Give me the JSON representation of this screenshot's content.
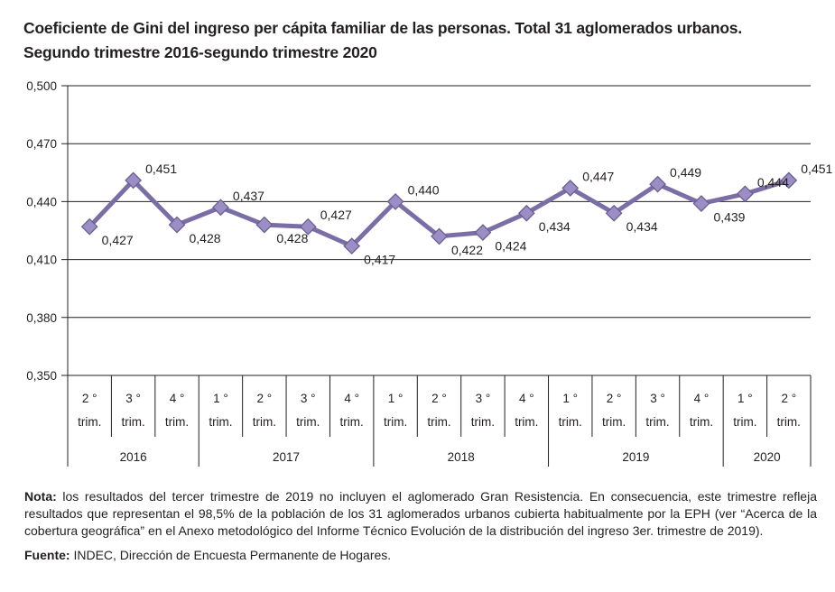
{
  "chart_data": {
    "type": "line",
    "title_line1": "Coeficiente de Gini del ingreso per cápita familiar de las personas. Total 31 aglomerados urbanos.",
    "title_line2": "Segundo trimestre 2016-segundo trimestre 2020",
    "ylim": [
      0.35,
      0.5
    ],
    "yticks": [
      "0,500",
      "0,470",
      "0,440",
      "0,410",
      "0,380",
      "0,350"
    ],
    "ytick_values": [
      0.5,
      0.47,
      0.44,
      0.41,
      0.38,
      0.35
    ],
    "grid": true,
    "series_color": "#7b6ea6",
    "marker_color": "#9a8ec4",
    "points": [
      {
        "q": "2 °",
        "t": "trim.",
        "year": "2016",
        "value": 0.427,
        "label": "0,427",
        "pos": "below"
      },
      {
        "q": "3 °",
        "t": "trim.",
        "year": "2016",
        "value": 0.451,
        "label": "0,451",
        "pos": "above"
      },
      {
        "q": "4 °",
        "t": "trim.",
        "year": "2016",
        "value": 0.428,
        "label": "0,428",
        "pos": "below"
      },
      {
        "q": "1 °",
        "t": "trim.",
        "year": "2017",
        "value": 0.437,
        "label": "0,437",
        "pos": "above"
      },
      {
        "q": "2 °",
        "t": "trim.",
        "year": "2017",
        "value": 0.428,
        "label": "0,428",
        "pos": "below"
      },
      {
        "q": "3 °",
        "t": "trim.",
        "year": "2017",
        "value": 0.427,
        "label": "0,427",
        "pos": "above"
      },
      {
        "q": "4 °",
        "t": "trim.",
        "year": "2017",
        "value": 0.417,
        "label": "0,417",
        "pos": "below"
      },
      {
        "q": "1 °",
        "t": "trim.",
        "year": "2018",
        "value": 0.44,
        "label": "0,440",
        "pos": "above"
      },
      {
        "q": "2 °",
        "t": "trim.",
        "year": "2018",
        "value": 0.422,
        "label": "0,422",
        "pos": "below"
      },
      {
        "q": "3 °",
        "t": "trim.",
        "year": "2018",
        "value": 0.424,
        "label": "0,424",
        "pos": "below"
      },
      {
        "q": "4 °",
        "t": "trim.",
        "year": "2018",
        "value": 0.434,
        "label": "0,434",
        "pos": "below"
      },
      {
        "q": "1 °",
        "t": "trim.",
        "year": "2019",
        "value": 0.447,
        "label": "0,447",
        "pos": "above"
      },
      {
        "q": "2 °",
        "t": "trim.",
        "year": "2019",
        "value": 0.434,
        "label": "0,434",
        "pos": "below"
      },
      {
        "q": "3 °",
        "t": "trim.",
        "year": "2019",
        "value": 0.449,
        "label": "0,449",
        "pos": "above"
      },
      {
        "q": "4 °",
        "t": "trim.",
        "year": "2019",
        "value": 0.439,
        "label": "0,439",
        "pos": "below"
      },
      {
        "q": "1 °",
        "t": "trim.",
        "year": "2020",
        "value": 0.444,
        "label": "0,444",
        "pos": "above"
      },
      {
        "q": "2 °",
        "t": "trim.",
        "year": "2020",
        "value": 0.451,
        "label": "0,451",
        "pos": "above"
      }
    ],
    "years": [
      "2016",
      "2017",
      "2018",
      "2019",
      "2020"
    ]
  },
  "notes": {
    "nota_label": "Nota:",
    "nota_text": " los resultados del tercer trimestre de 2019 no incluyen el aglomerado Gran Resistencia. En consecuencia, este trimestre refleja resultados que representan el 98,5% de la población de los 31 aglomerados urbanos cubierta habitualmente por la EPH (ver “Acerca de la cobertura geográfica” en el Anexo metodológico del Informe Técnico Evolución de la distribución del ingreso 3er. trimestre de 2019).",
    "fuente_label": "Fuente:",
    "fuente_text": " INDEC, Dirección de Encuesta Permanente de Hogares."
  }
}
